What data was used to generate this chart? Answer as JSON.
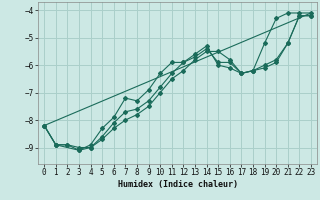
{
  "xlabel": "Humidex (Indice chaleur)",
  "ylabel": "",
  "bg_color": "#cce8e4",
  "grid_color": "#aacfca",
  "line_color": "#1a6b5a",
  "xlim": [
    -0.5,
    23.5
  ],
  "ylim": [
    -9.6,
    -3.7
  ],
  "yticks": [
    -9,
    -8,
    -7,
    -6,
    -5,
    -4
  ],
  "xticks": [
    0,
    1,
    2,
    3,
    4,
    5,
    6,
    7,
    8,
    9,
    10,
    11,
    12,
    13,
    14,
    15,
    16,
    17,
    18,
    19,
    20,
    21,
    22,
    23
  ],
  "series": [
    {
      "x": [
        0,
        1,
        3,
        4,
        5,
        6,
        7,
        8,
        9,
        10,
        11,
        12,
        13,
        14,
        15,
        16,
        17,
        18,
        19,
        20,
        21,
        22,
        23
      ],
      "y": [
        -8.2,
        -8.9,
        -9.1,
        -8.9,
        -8.3,
        -7.9,
        -7.2,
        -7.3,
        -6.9,
        -6.3,
        -5.9,
        -5.9,
        -5.6,
        -5.3,
        -6.0,
        -6.1,
        -6.3,
        -6.2,
        -5.2,
        -4.3,
        -4.1,
        -4.1,
        -4.1
      ]
    },
    {
      "x": [
        0,
        1,
        2,
        3,
        4,
        5,
        6,
        7,
        8,
        9,
        10,
        11,
        12,
        13,
        14,
        15,
        16,
        17,
        18,
        19,
        20,
        21,
        22,
        23
      ],
      "y": [
        -8.2,
        -8.9,
        -8.9,
        -9.0,
        -9.0,
        -8.7,
        -8.3,
        -8.0,
        -7.8,
        -7.5,
        -7.0,
        -6.5,
        -6.2,
        -5.8,
        -5.5,
        -5.5,
        -5.8,
        -6.3,
        -6.2,
        -6.0,
        -5.8,
        -5.2,
        -4.2,
        -4.2
      ]
    },
    {
      "x": [
        0,
        1,
        2,
        3,
        4,
        5,
        6,
        7,
        8,
        9,
        10,
        11,
        12,
        13,
        14,
        15,
        16,
        17,
        18,
        19,
        20,
        21,
        22,
        23
      ],
      "y": [
        -8.2,
        -8.9,
        -8.9,
        -9.1,
        -9.0,
        -8.6,
        -8.1,
        -7.7,
        -7.6,
        -7.3,
        -6.8,
        -6.3,
        -5.9,
        -5.7,
        -5.4,
        -5.9,
        -5.9,
        -6.3,
        -6.2,
        -6.1,
        -5.9,
        -5.2,
        -4.2,
        -4.2
      ]
    },
    {
      "x": [
        0,
        23
      ],
      "y": [
        -8.2,
        -4.1
      ]
    }
  ]
}
